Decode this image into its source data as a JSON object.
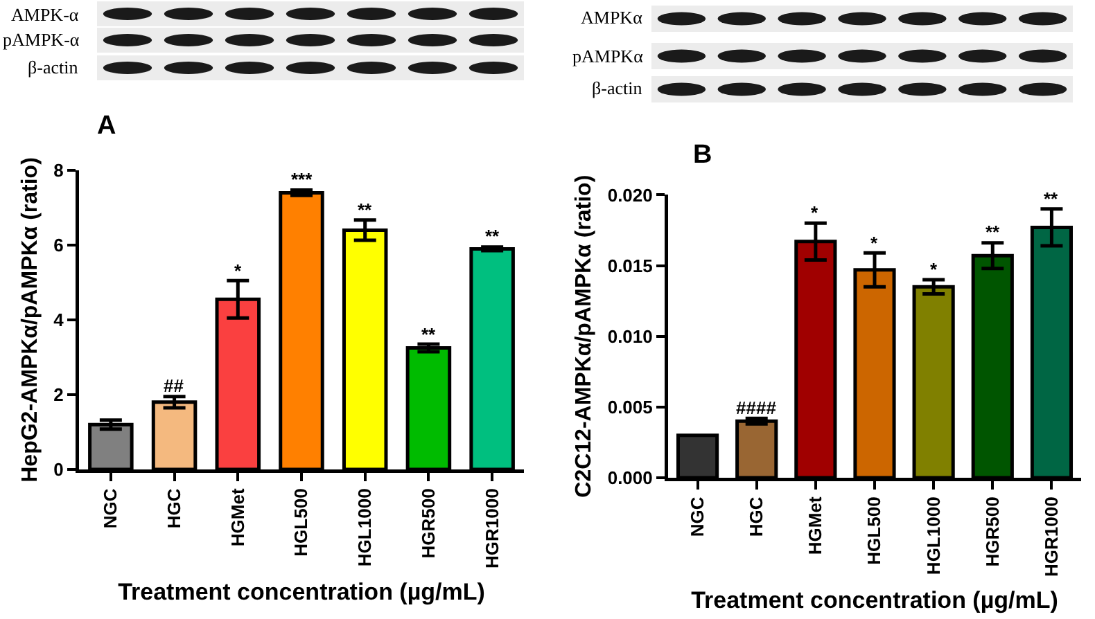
{
  "chart_data": [
    {
      "type": "bar",
      "title": "A",
      "xlabel": "Treatment concentration (µg/mL)",
      "ylabel": "HepG2-AMPKα/pAMPKα (ratio)",
      "categories": [
        "NGC",
        "HGC",
        "HGMet",
        "HGL500",
        "HGL1000",
        "HGR500",
        "HGR1000"
      ],
      "values": [
        1.2,
        1.8,
        4.55,
        7.4,
        6.4,
        3.25,
        5.9
      ],
      "errors": [
        0.12,
        0.15,
        0.5,
        0.07,
        0.27,
        0.1,
        0.05
      ],
      "colors": [
        "#808080",
        "#f4b97f",
        "#fa4040",
        "#ff8000",
        "#ffff00",
        "#00bb00",
        "#00bf7f"
      ],
      "ylim": [
        0,
        8
      ],
      "yticks": [
        0,
        2,
        4,
        6,
        8
      ],
      "annotations": [
        "AMPK-α",
        "pAMPK-α",
        "β-actin",
        {
          "text": "##",
          "x": "HGC",
          "y": 1.95
        },
        {
          "text": "*",
          "x": "HGMet",
          "y": 5.05
        },
        {
          "text": "***",
          "x": "HGL500",
          "y": 7.47
        },
        {
          "text": "**",
          "x": "HGL1000",
          "y": 6.67
        },
        {
          "text": "**",
          "x": "HGR500",
          "y": 3.35
        },
        {
          "text": "**",
          "x": "HGR1000",
          "y": 5.95
        }
      ]
    },
    {
      "type": "bar",
      "title": "B",
      "xlabel": "Treatment concentration (µg/mL)",
      "ylabel": "C2C12-AMPKα/pAMPKα (ratio)",
      "categories": [
        "NGC",
        "HGC",
        "HGMet",
        "HGL500",
        "HGL1000",
        "HGR500",
        "HGR1000"
      ],
      "values": [
        0.003,
        0.004,
        0.0167,
        0.0147,
        0.0135,
        0.0157,
        0.0177
      ],
      "errors": [
        null,
        0.0002,
        0.0013,
        0.0012,
        0.0005,
        0.0009,
        0.0013
      ],
      "colors": [
        "#333333",
        "#996633",
        "#a00000",
        "#cc6600",
        "#808000",
        "#005500",
        "#006644"
      ],
      "ylim": [
        0,
        0.02
      ],
      "yticks": [
        {
          "value": 0,
          "label": "0.000"
        },
        {
          "value": 0.005,
          "label": "0.005"
        },
        {
          "value": 0.01,
          "label": "0.010"
        },
        {
          "value": 0.015,
          "label": "0.015"
        },
        {
          "value": 0.02,
          "label": "0.020"
        }
      ],
      "annotations": [
        "AMPKα",
        "pAMPKα",
        "β-actin",
        {
          "text": "####",
          "x": "HGC",
          "y": 0.0042
        },
        {
          "text": "*",
          "x": "HGMet",
          "y": 0.018
        },
        {
          "text": "*",
          "x": "HGL500",
          "y": 0.0159
        },
        {
          "text": "*",
          "x": "HGL1000",
          "y": 0.014
        },
        {
          "text": "**",
          "x": "HGR500",
          "y": 0.0166
        },
        {
          "text": "**",
          "x": "HGR1000",
          "y": 0.019
        }
      ]
    }
  ]
}
